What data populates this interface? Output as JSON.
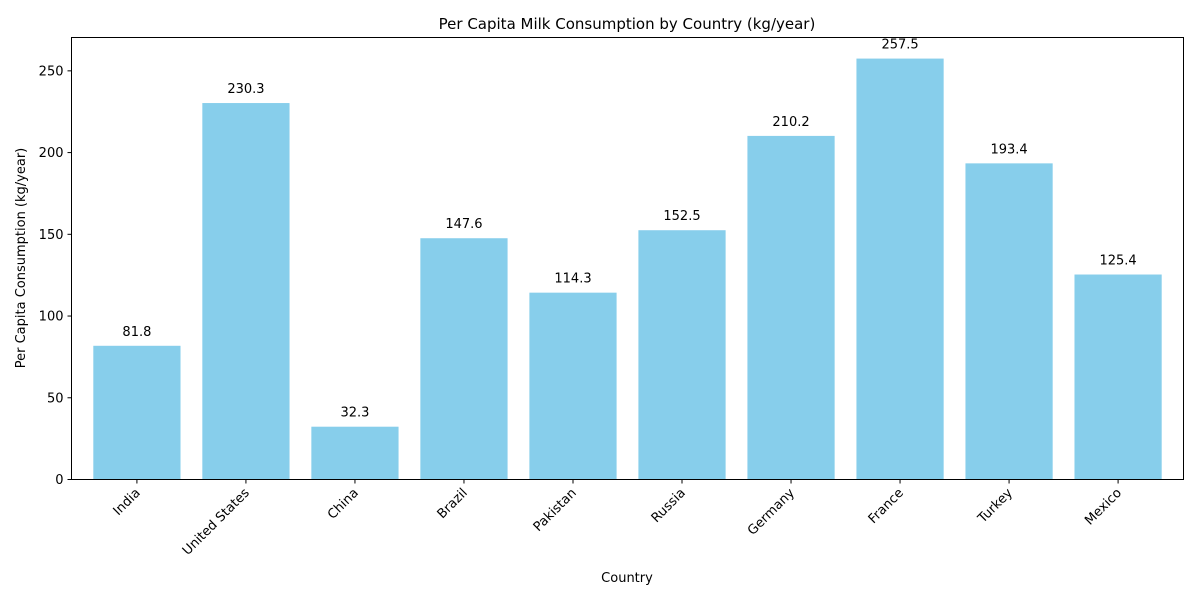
{
  "chart_data": {
    "type": "bar",
    "title": "Per Capita Milk Consumption by Country (kg/year)",
    "xlabel": "Country",
    "ylabel": "Per Capita Consumption (kg/year)",
    "categories": [
      "India",
      "United States",
      "China",
      "Brazil",
      "Pakistan",
      "Russia",
      "Germany",
      "France",
      "Turkey",
      "Mexico"
    ],
    "values": [
      81.8,
      230.3,
      32.3,
      147.6,
      114.3,
      152.5,
      210.2,
      257.5,
      193.4,
      125.4
    ],
    "value_labels": [
      "81.8",
      "230.3",
      "32.3",
      "147.6",
      "114.3",
      "152.5",
      "210.2",
      "257.5",
      "193.4",
      "125.4"
    ],
    "yticks": [
      0,
      50,
      100,
      150,
      200,
      250
    ],
    "ylim": [
      0,
      270.4
    ],
    "grid": false,
    "bar_color": "#87ceeb"
  }
}
